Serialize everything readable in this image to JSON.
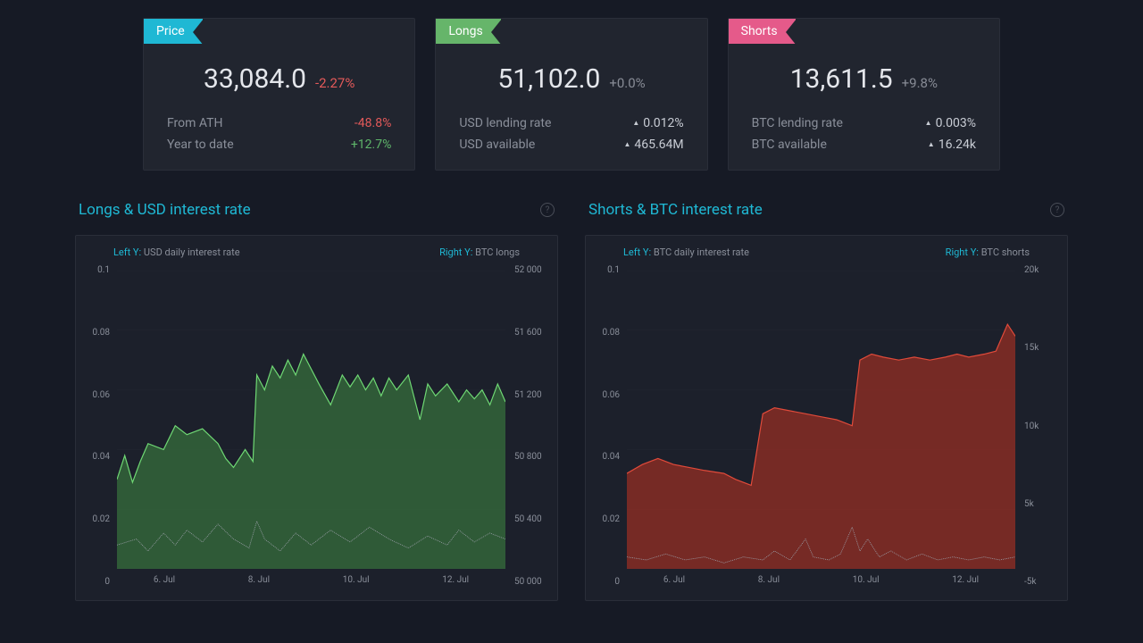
{
  "cards": {
    "price": {
      "tag": "Price",
      "tag_color": "#1fb8d4",
      "value": "33,084.0",
      "change": "-2.27%",
      "change_class": "neg",
      "rows": [
        {
          "label": "From ATH",
          "value": "-48.8%",
          "value_class": "neg",
          "arrow": false
        },
        {
          "label": "Year to date",
          "value": "+12.7%",
          "value_class": "pos",
          "arrow": false
        }
      ]
    },
    "longs": {
      "tag": "Longs",
      "tag_color": "#66b56a",
      "value": "51,102.0",
      "change": "+0.0%",
      "change_class": "neutral",
      "rows": [
        {
          "label": "USD lending rate",
          "value": "0.012%",
          "value_class": "detail-val",
          "arrow": true
        },
        {
          "label": "USD available",
          "value": "465.64M",
          "value_class": "detail-val",
          "arrow": true
        }
      ]
    },
    "shorts": {
      "tag": "Shorts",
      "tag_color": "#e55a8a",
      "value": "13,611.5",
      "change": "+9.8%",
      "change_class": "neutral",
      "rows": [
        {
          "label": "BTC lending rate",
          "value": "0.003%",
          "value_class": "detail-val",
          "arrow": true
        },
        {
          "label": "BTC available",
          "value": "16.24k",
          "value_class": "detail-val",
          "arrow": true
        }
      ]
    }
  },
  "charts": {
    "longs": {
      "title": "Longs & USD interest rate",
      "left_label_prefix": "Left Y:",
      "left_label": "USD daily interest rate",
      "right_label_prefix": "Right Y:",
      "right_label": "BTC longs",
      "y_left_ticks": [
        "0.1",
        "0.08",
        "0.06",
        "0.04",
        "0.02",
        "0"
      ],
      "y_right_ticks": [
        "52 000",
        "51 600",
        "51 200",
        "50 800",
        "50 400",
        "50 000"
      ],
      "x_ticks": [
        "6. Jul",
        "8. Jul",
        "10. Jul",
        "12. Jul"
      ],
      "area_color": "#3a7a3e",
      "area_stroke": "#6fd874",
      "line_color": "#9ea2ac",
      "area_points": [
        [
          0,
          0.7
        ],
        [
          2,
          0.62
        ],
        [
          4,
          0.71
        ],
        [
          6,
          0.64
        ],
        [
          8,
          0.58
        ],
        [
          12,
          0.6
        ],
        [
          15,
          0.52
        ],
        [
          18,
          0.55
        ],
        [
          22,
          0.53
        ],
        [
          26,
          0.58
        ],
        [
          28,
          0.63
        ],
        [
          30,
          0.66
        ],
        [
          33,
          0.6
        ],
        [
          35,
          0.64
        ],
        [
          36,
          0.35
        ],
        [
          38,
          0.4
        ],
        [
          40,
          0.32
        ],
        [
          42,
          0.36
        ],
        [
          44,
          0.3
        ],
        [
          46,
          0.35
        ],
        [
          48,
          0.28
        ],
        [
          50,
          0.33
        ],
        [
          52,
          0.38
        ],
        [
          55,
          0.45
        ],
        [
          58,
          0.35
        ],
        [
          60,
          0.39
        ],
        [
          62,
          0.35
        ],
        [
          64,
          0.4
        ],
        [
          66,
          0.36
        ],
        [
          68,
          0.42
        ],
        [
          70,
          0.36
        ],
        [
          72,
          0.4
        ],
        [
          75,
          0.35
        ],
        [
          78,
          0.5
        ],
        [
          80,
          0.38
        ],
        [
          82,
          0.42
        ],
        [
          85,
          0.38
        ],
        [
          88,
          0.44
        ],
        [
          90,
          0.4
        ],
        [
          92,
          0.43
        ],
        [
          94,
          0.4
        ],
        [
          96,
          0.45
        ],
        [
          98,
          0.38
        ],
        [
          100,
          0.44
        ]
      ],
      "line_points": [
        [
          0,
          0.92
        ],
        [
          5,
          0.9
        ],
        [
          8,
          0.94
        ],
        [
          12,
          0.88
        ],
        [
          15,
          0.92
        ],
        [
          18,
          0.87
        ],
        [
          22,
          0.91
        ],
        [
          26,
          0.85
        ],
        [
          30,
          0.9
        ],
        [
          34,
          0.93
        ],
        [
          36,
          0.84
        ],
        [
          38,
          0.9
        ],
        [
          42,
          0.94
        ],
        [
          46,
          0.88
        ],
        [
          50,
          0.92
        ],
        [
          55,
          0.87
        ],
        [
          60,
          0.91
        ],
        [
          65,
          0.86
        ],
        [
          70,
          0.9
        ],
        [
          75,
          0.93
        ],
        [
          80,
          0.89
        ],
        [
          85,
          0.92
        ],
        [
          88,
          0.87
        ],
        [
          92,
          0.91
        ],
        [
          96,
          0.88
        ],
        [
          100,
          0.9
        ]
      ]
    },
    "shorts": {
      "title": "Shorts & BTC interest rate",
      "left_label_prefix": "Left Y:",
      "left_label": "BTC daily interest rate",
      "right_label_prefix": "Right Y:",
      "right_label": "BTC shorts",
      "y_left_ticks": [
        "0.1",
        "0.08",
        "0.06",
        "0.04",
        "0.02",
        "0"
      ],
      "y_right_ticks": [
        "20k",
        "15k",
        "10k",
        "5k",
        "-5k"
      ],
      "x_ticks": [
        "6. Jul",
        "8. Jul",
        "10. Jul",
        "12. Jul"
      ],
      "area_color": "#a82f22",
      "area_stroke": "#e04a3a",
      "line_color": "#9ea2ac",
      "area_points": [
        [
          0,
          0.68
        ],
        [
          4,
          0.65
        ],
        [
          8,
          0.63
        ],
        [
          12,
          0.65
        ],
        [
          16,
          0.66
        ],
        [
          20,
          0.67
        ],
        [
          25,
          0.68
        ],
        [
          28,
          0.7
        ],
        [
          32,
          0.72
        ],
        [
          35,
          0.48
        ],
        [
          38,
          0.46
        ],
        [
          42,
          0.47
        ],
        [
          46,
          0.48
        ],
        [
          50,
          0.49
        ],
        [
          54,
          0.5
        ],
        [
          58,
          0.52
        ],
        [
          60,
          0.3
        ],
        [
          63,
          0.28
        ],
        [
          66,
          0.29
        ],
        [
          70,
          0.3
        ],
        [
          74,
          0.29
        ],
        [
          78,
          0.3
        ],
        [
          82,
          0.29
        ],
        [
          85,
          0.28
        ],
        [
          88,
          0.29
        ],
        [
          92,
          0.28
        ],
        [
          95,
          0.27
        ],
        [
          98,
          0.18
        ],
        [
          100,
          0.22
        ]
      ],
      "line_points": [
        [
          0,
          0.96
        ],
        [
          5,
          0.97
        ],
        [
          10,
          0.95
        ],
        [
          15,
          0.97
        ],
        [
          20,
          0.96
        ],
        [
          25,
          0.98
        ],
        [
          30,
          0.96
        ],
        [
          35,
          0.97
        ],
        [
          38,
          0.94
        ],
        [
          42,
          0.97
        ],
        [
          46,
          0.9
        ],
        [
          48,
          0.96
        ],
        [
          52,
          0.97
        ],
        [
          55,
          0.95
        ],
        [
          58,
          0.86
        ],
        [
          60,
          0.94
        ],
        [
          62,
          0.9
        ],
        [
          65,
          0.96
        ],
        [
          68,
          0.94
        ],
        [
          72,
          0.97
        ],
        [
          76,
          0.95
        ],
        [
          80,
          0.97
        ],
        [
          84,
          0.96
        ],
        [
          88,
          0.97
        ],
        [
          92,
          0.96
        ],
        [
          96,
          0.97
        ],
        [
          100,
          0.96
        ]
      ]
    }
  },
  "colors": {
    "bg": "#161a25",
    "panel": "#21252f",
    "chart_bg": "#1c202b",
    "text": "#e4e6eb",
    "muted": "#8a8f9a",
    "accent": "#1fb8d4",
    "pos": "#5fb66a",
    "neg": "#e55a5a"
  }
}
